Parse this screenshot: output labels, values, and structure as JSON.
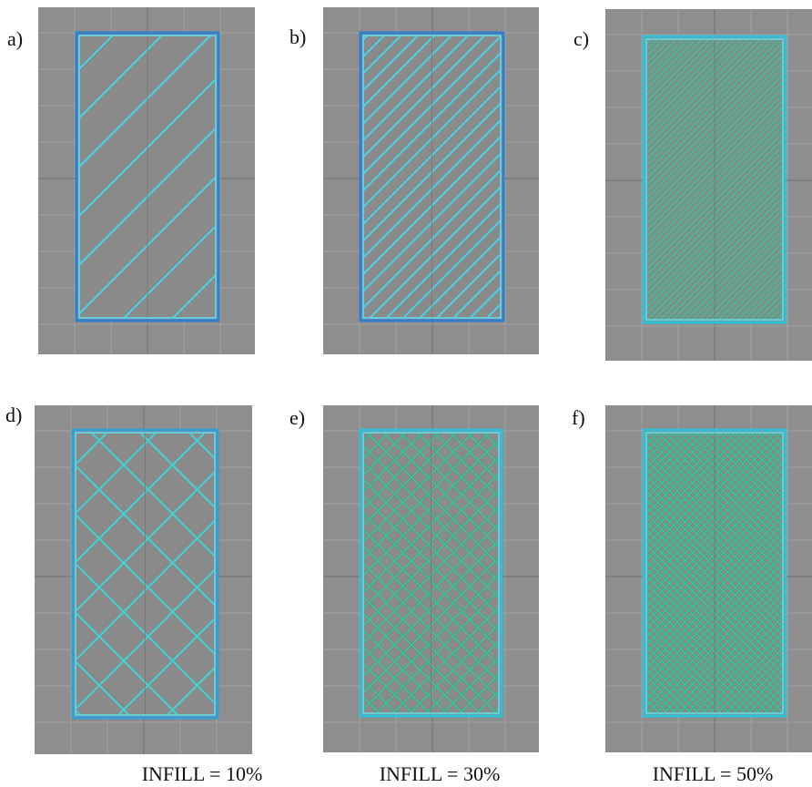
{
  "panels": [
    {
      "label": "a)"
    },
    {
      "label": "b)"
    },
    {
      "label": "c)"
    },
    {
      "label": "d)"
    },
    {
      "label": "e)"
    },
    {
      "label": "f)"
    }
  ],
  "captions": [
    "INFILL = 10%",
    "INFILL = 30%",
    "INFILL = 50%"
  ]
}
